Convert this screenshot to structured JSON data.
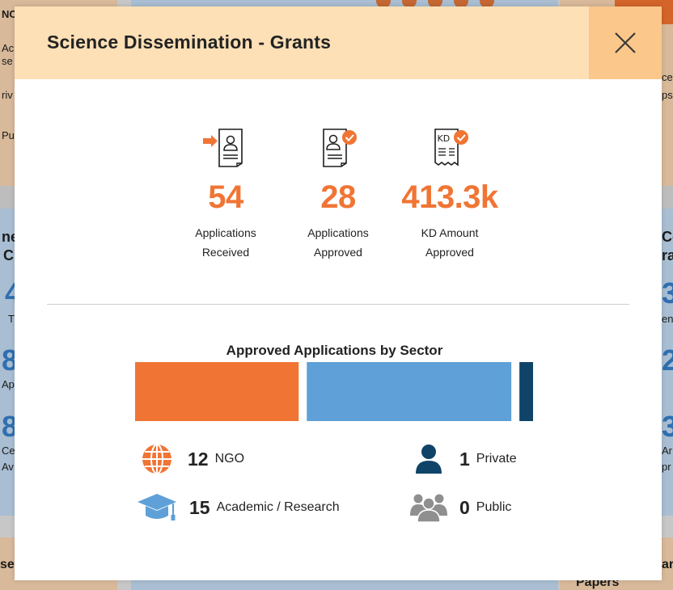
{
  "modal": {
    "title": "Science Dissemination - Grants",
    "close_icon": "close-icon"
  },
  "stats": [
    {
      "icon": "application-received-icon",
      "value": "54",
      "label_line1": "Applications",
      "label_line2": "Received"
    },
    {
      "icon": "application-approved-icon",
      "value": "28",
      "label_line1": "Applications",
      "label_line2": "Approved"
    },
    {
      "icon": "kd-amount-approved-icon",
      "value": "413.3k",
      "label_line1": "KD Amount",
      "label_line2": "Approved"
    }
  ],
  "chart_data": {
    "type": "bar",
    "title": "Approved Applications by Sector",
    "orientation": "horizontal-stacked",
    "categories": [
      "NGO",
      "Academic / Research",
      "Private",
      "Public"
    ],
    "values": [
      12,
      15,
      1,
      0
    ],
    "colors": [
      "#f07535",
      "#5ea0d7",
      "#0f4468",
      "#8f8f8f"
    ]
  },
  "legend": [
    {
      "icon": "globe-icon",
      "count": "12",
      "label": "NGO"
    },
    {
      "icon": "person-icon",
      "count": "1",
      "label": "Private"
    },
    {
      "icon": "graduation-cap-icon",
      "count": "15",
      "label": "Academic / Research"
    },
    {
      "icon": "people-group-icon",
      "count": "0",
      "label": "Public"
    }
  ],
  "background": {
    "items": [
      "NC",
      "Ac",
      "se",
      "riv",
      "Pub",
      "ne",
      "C",
      "T",
      "Ap",
      "Ce",
      "Av",
      "se",
      "ce",
      "ps",
      "Co",
      "ra",
      "ent",
      "Ar",
      "pr",
      "Papers",
      "ar"
    ],
    "numbers": [
      "4",
      "8",
      "8",
      "3",
      "2",
      "3"
    ]
  }
}
